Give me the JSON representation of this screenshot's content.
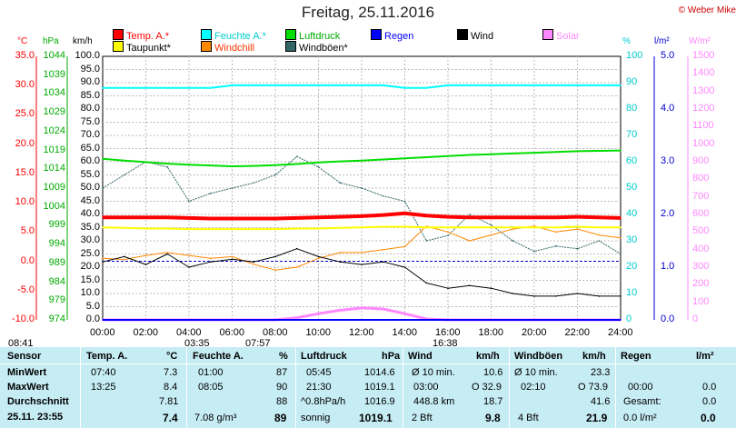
{
  "title": "Freitag, 25.11.2016",
  "copyright": "© Weber Mike",
  "legend": [
    {
      "label": "Temp. A.*",
      "color": "#ff0000"
    },
    {
      "label": "Feuchte A.*",
      "color": "#00ffff"
    },
    {
      "label": "Luftdruck",
      "color": "#00dd00"
    },
    {
      "label": "Regen",
      "color": "#0000ff"
    },
    {
      "label": "Wind",
      "color": "#000000"
    },
    {
      "label": "Solar",
      "color": "#ff88ff"
    },
    {
      "label": "Taupunkt*",
      "color": "#ffff00"
    },
    {
      "label": "Windchill",
      "color": "#ff8800"
    },
    {
      "label": "Windböen*",
      "color": "#336666"
    }
  ],
  "units": {
    "temp": "°C",
    "pressure": "hPa",
    "wind": "km/h",
    "humidity": "%",
    "rain": "l/m²",
    "solar": "W/m²"
  },
  "axis_ticks": {
    "temp": [
      "35.0",
      "30.0",
      "25.0",
      "20.0",
      "15.0",
      "10.0",
      "5.0",
      "0.0",
      "-5.0",
      "-10.0"
    ],
    "pressure": [
      "1044",
      "1039",
      "1034",
      "1029",
      "1024",
      "1019",
      "1014",
      "1009",
      "1004",
      "999",
      "994",
      "989",
      "984",
      "979",
      "974"
    ],
    "wind": [
      "100.0",
      "95.0",
      "90.0",
      "85.0",
      "80.0",
      "75.0",
      "70.0",
      "65.0",
      "60.0",
      "55.0",
      "50.0",
      "45.0",
      "40.0",
      "35.0",
      "30.0",
      "25.0",
      "20.0",
      "15.0",
      "10.0",
      "5.0",
      "0.0"
    ],
    "humidity": [
      "100",
      "90",
      "80",
      "70",
      "60",
      "50",
      "40",
      "30",
      "20",
      "10",
      "0"
    ],
    "rain": [
      "5.0",
      "4.0",
      "3.0",
      "2.0",
      "1.0",
      "0.0"
    ],
    "solar": [
      "1500",
      "1400",
      "1300",
      "1200",
      "1100",
      "1000",
      "900",
      "800",
      "700",
      "600",
      "500",
      "400",
      "300",
      "200",
      "100",
      "0"
    ],
    "time": [
      "00:00",
      "02:00",
      "04:00",
      "06:00",
      "08:00",
      "10:00",
      "12:00",
      "14:00",
      "16:00",
      "18:00",
      "20:00",
      "22:00",
      "24:00"
    ]
  },
  "markers": {
    "sunrise": "08:41",
    "moonrise_left": "03:35",
    "sun_noon": "07:57",
    "moonset": "16:38"
  },
  "chart_data": {
    "type": "line",
    "x_hours": [
      0,
      1,
      2,
      3,
      4,
      5,
      6,
      7,
      8,
      9,
      10,
      11,
      12,
      13,
      14,
      15,
      16,
      17,
      18,
      19,
      20,
      21,
      22,
      23,
      24
    ],
    "xlim": [
      0,
      24
    ],
    "series": [
      {
        "name": "Temp. A.*",
        "color": "#ff0000",
        "axis": "temp",
        "ylim": [
          -10,
          35
        ],
        "values": [
          7.5,
          7.5,
          7.5,
          7.5,
          7.4,
          7.3,
          7.3,
          7.3,
          7.3,
          7.4,
          7.5,
          7.6,
          7.7,
          7.9,
          8.2,
          7.8,
          7.6,
          7.5,
          7.5,
          7.5,
          7.5,
          7.5,
          7.6,
          7.5,
          7.4
        ]
      },
      {
        "name": "Feuchte A.*",
        "color": "#00ffff",
        "axis": "humidity",
        "ylim": [
          0,
          100
        ],
        "values": [
          88,
          88,
          88,
          88,
          88,
          88,
          89,
          89,
          89,
          89,
          89,
          89,
          89,
          89,
          88,
          88,
          89,
          89,
          89,
          89,
          89,
          89,
          89,
          89,
          89
        ]
      },
      {
        "name": "Luftdruck",
        "color": "#00dd00",
        "axis": "pressure",
        "ylim": [
          974,
          1044
        ],
        "values": [
          1016.8,
          1016.3,
          1015.9,
          1015.5,
          1015.2,
          1015.0,
          1014.8,
          1014.9,
          1015.1,
          1015.4,
          1015.8,
          1016.1,
          1016.3,
          1016.6,
          1016.9,
          1017.2,
          1017.5,
          1017.8,
          1018.0,
          1018.2,
          1018.4,
          1018.6,
          1018.8,
          1018.9,
          1019.0
        ]
      },
      {
        "name": "Taupunkt*",
        "color": "#ffff00",
        "axis": "temp",
        "ylim": [
          -10,
          35
        ],
        "values": [
          5.8,
          5.7,
          5.6,
          5.6,
          5.5,
          5.5,
          5.5,
          5.5,
          5.5,
          5.6,
          5.6,
          5.7,
          5.8,
          5.9,
          5.9,
          5.8,
          5.8,
          5.8,
          5.8,
          5.8,
          5.8,
          5.8,
          5.9,
          5.8,
          5.8
        ]
      },
      {
        "name": "Windchill",
        "color": "#ff8800",
        "axis": "temp",
        "ylim": [
          -10,
          35
        ],
        "values": [
          0.5,
          0.3,
          1.0,
          1.5,
          1.0,
          0.5,
          0.8,
          -0.5,
          -1.5,
          -1.0,
          0.5,
          1.5,
          1.5,
          2.0,
          2.5,
          6.0,
          5.0,
          3.5,
          4.5,
          5.5,
          6.0,
          5.0,
          5.5,
          4.5,
          4.0
        ]
      },
      {
        "name": "Wind",
        "color": "#000000",
        "axis": "wind",
        "ylim": [
          0,
          100
        ],
        "values": [
          22,
          24,
          21,
          25,
          20,
          22,
          23,
          22,
          24,
          27,
          24,
          22,
          21,
          22,
          20,
          14,
          12,
          13,
          12,
          10,
          9,
          9,
          10,
          9,
          9
        ]
      },
      {
        "name": "Windböen*",
        "color": "#336666",
        "axis": "wind",
        "ylim": [
          0,
          100
        ],
        "values": [
          50,
          55,
          60,
          58,
          45,
          48,
          50,
          52,
          55,
          62,
          58,
          52,
          50,
          47,
          45,
          30,
          32,
          40,
          36,
          30,
          26,
          28,
          27,
          30,
          25
        ]
      },
      {
        "name": "Solar",
        "color": "#ff88ff",
        "axis": "solar",
        "ylim": [
          0,
          1500
        ],
        "values": [
          0,
          0,
          0,
          0,
          0,
          0,
          0,
          0,
          0,
          12,
          35,
          55,
          68,
          62,
          35,
          5,
          0,
          0,
          0,
          0,
          0,
          0,
          0,
          0,
          0
        ]
      },
      {
        "name": "Regen",
        "color": "#0000ff",
        "axis": "rain",
        "ylim": [
          0,
          5
        ],
        "values": [
          0,
          0,
          0,
          0,
          0,
          0,
          0,
          0,
          0,
          0,
          0,
          0,
          0,
          0,
          0,
          0,
          0,
          0,
          0,
          0,
          0,
          0,
          0,
          0,
          0
        ]
      }
    ]
  },
  "table": {
    "sensor_header": "Sensor",
    "row_labels": [
      "MinWert",
      "MaxWert",
      "Durchschnitt",
      "25.11. 23:55"
    ],
    "temp": {
      "header": "Temp. A.",
      "unit": "°C",
      "min_time": "07:40",
      "min": "7.3",
      "max_time": "13:25",
      "max": "8.4",
      "avg": "7.81",
      "current": "7.4"
    },
    "humidity": {
      "header": "Feuchte A.",
      "unit": "%",
      "min_time": "01:00",
      "min": "87",
      "max_time": "08:05",
      "max": "90",
      "avg": "88",
      "abs": "7.08 g/m³",
      "current": "89"
    },
    "pressure": {
      "header": "Luftdruck",
      "unit": "hPa",
      "min_time": "05:45",
      "min": "1014.6",
      "max_time": "21:30",
      "max": "1019.1",
      "trend": "^0.8hPa/h",
      "avg": "1016.9",
      "state": "sonnig",
      "current": "1019.1"
    },
    "wind": {
      "header": "Wind",
      "unit": "km/h",
      "l1": "Ø 10 min.",
      "v1": "10.6",
      "l2_time": "03:00",
      "l2": "O 32.9",
      "l3": "448.8 km",
      "v3": "18.7",
      "l4": "2 Bft",
      "current": "9.8"
    },
    "gust": {
      "header": "Windböen",
      "unit": "km/h",
      "l1": "Ø 10 min.",
      "v1": "23.3",
      "l2_time": "02:10",
      "l2": "O 73.9",
      "v3": "41.6",
      "l4": "4 Bft",
      "current": "21.9"
    },
    "rain": {
      "header": "Regen",
      "unit": "l/m²",
      "l2_time": "00:00",
      "v2": "0.0",
      "l3": "Gesamt:",
      "v3": "0.0",
      "l4": "0.0 l/m²",
      "current": "0.0"
    }
  }
}
